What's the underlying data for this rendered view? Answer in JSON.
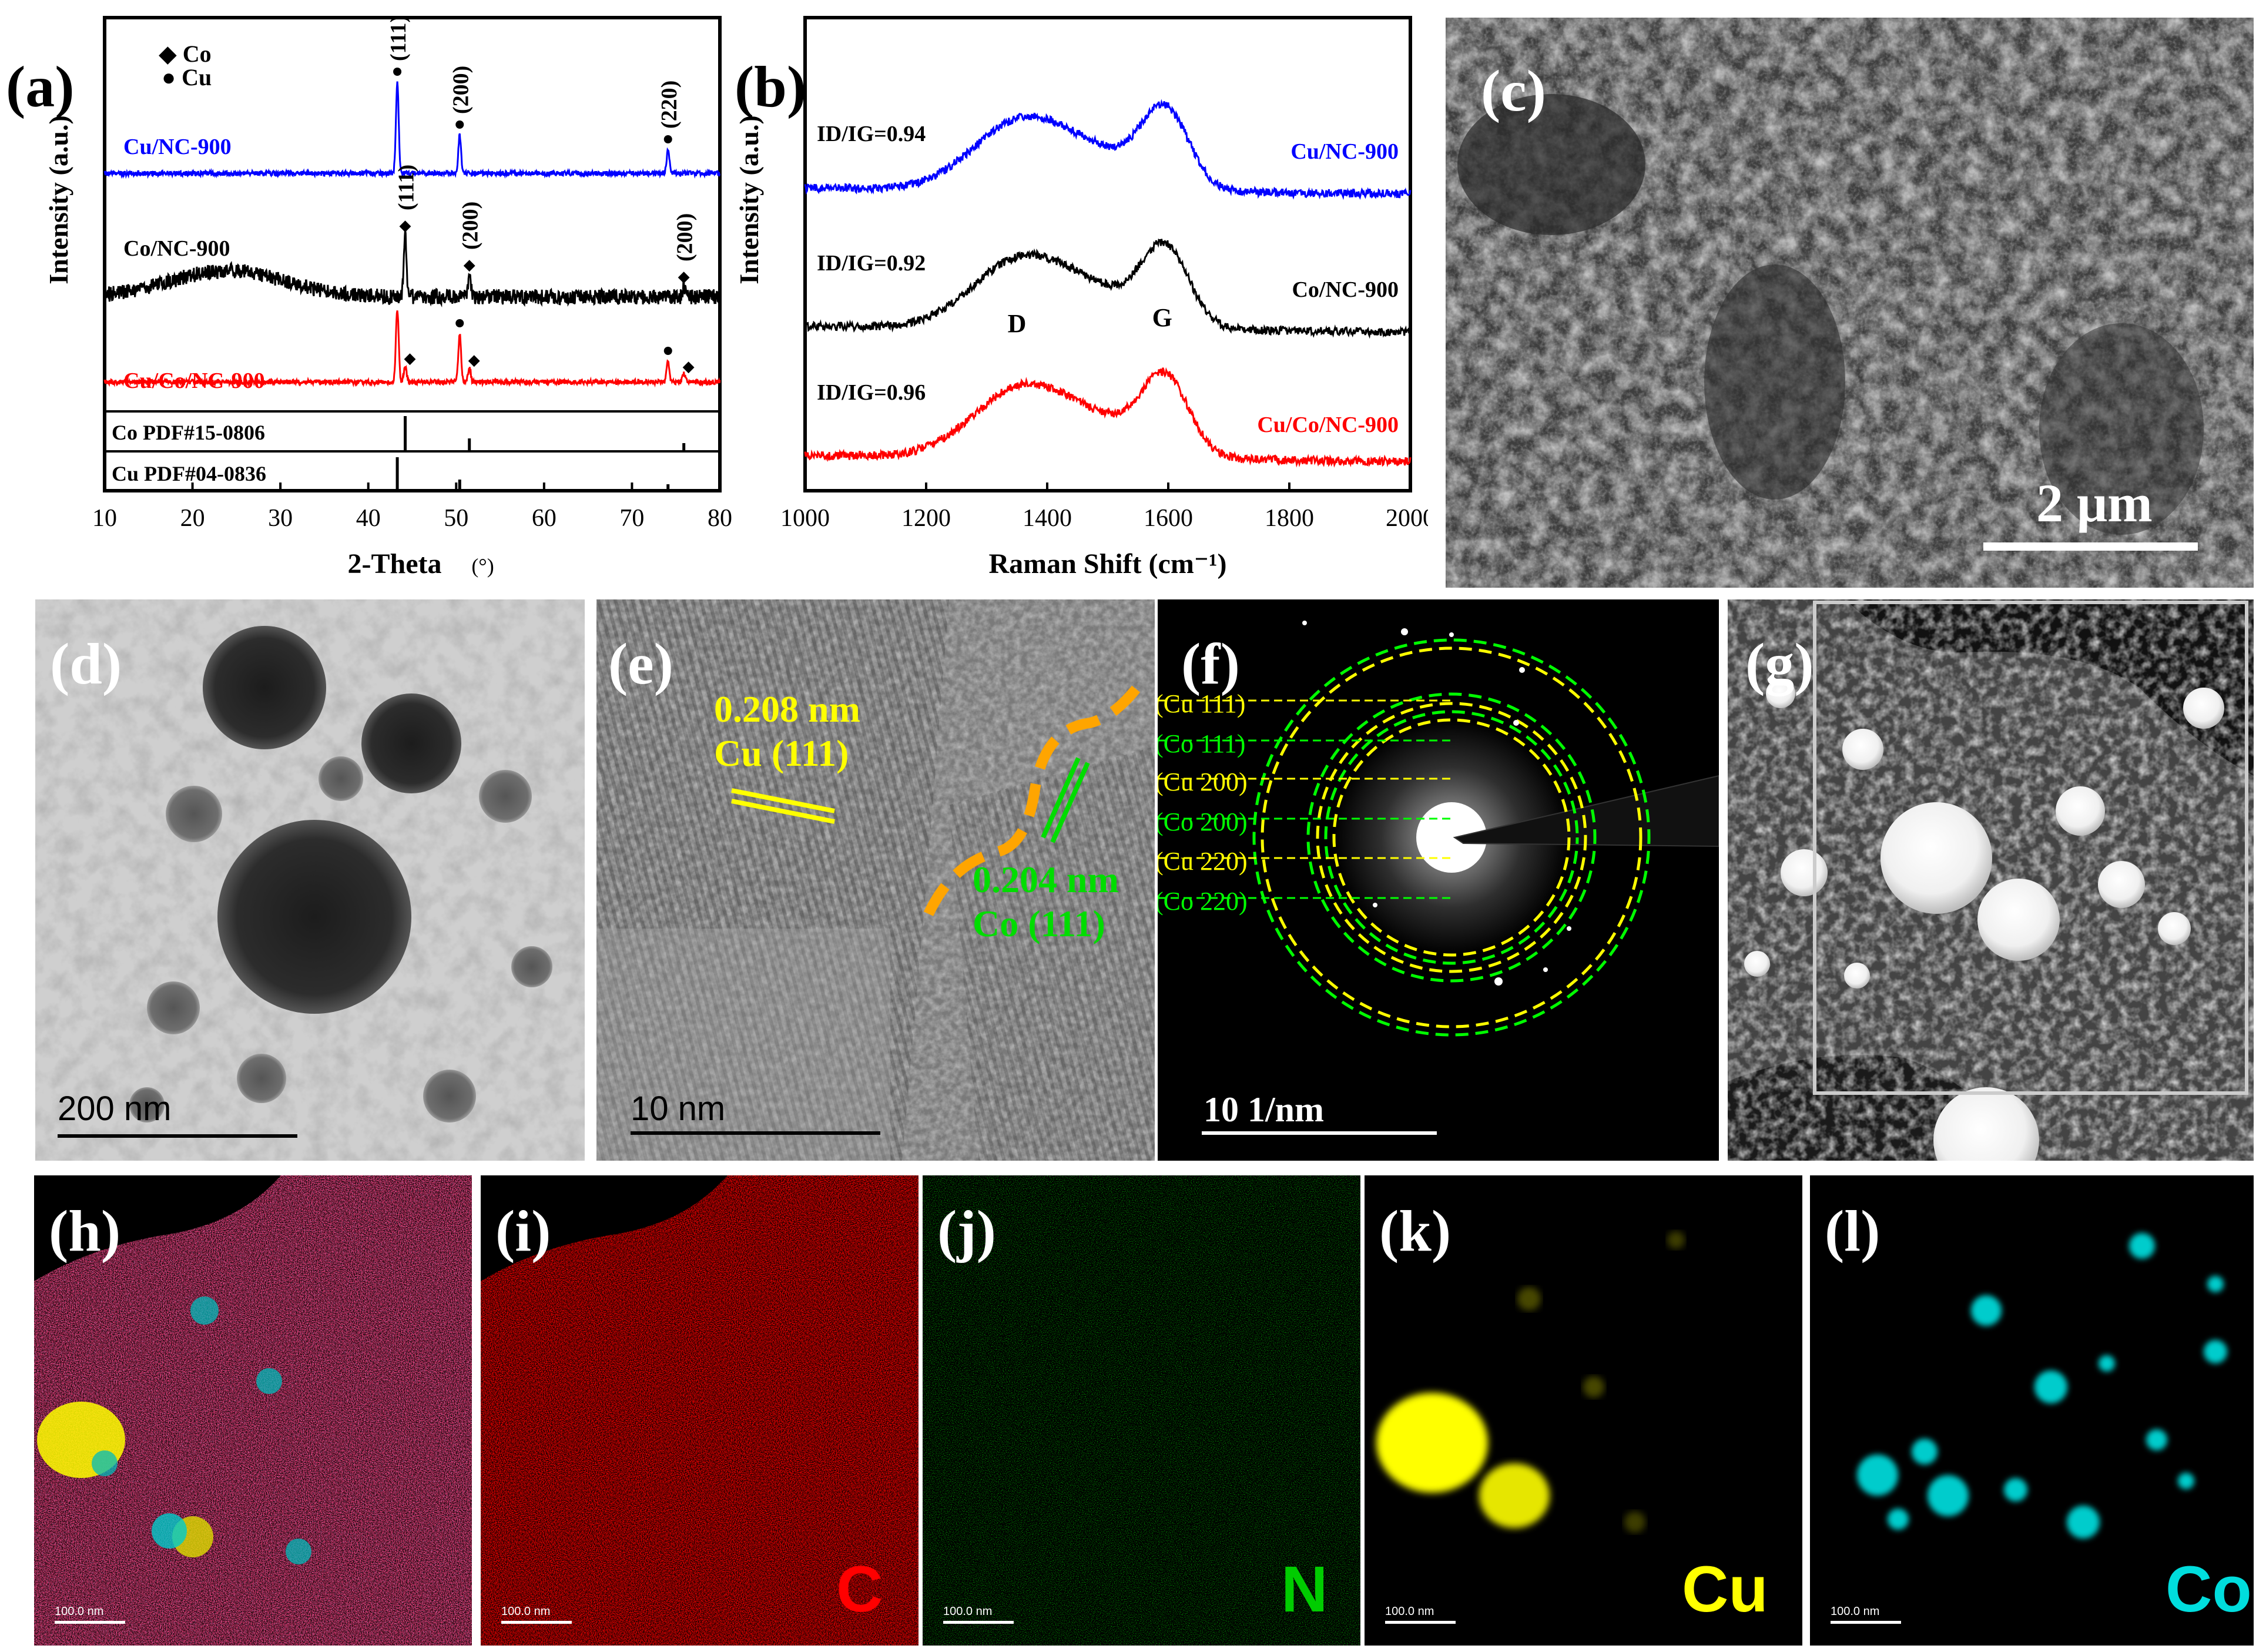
{
  "panels": {
    "a": "(a)",
    "b": "(b)",
    "c": "(c)",
    "d": "(d)",
    "e": "(e)",
    "f": "(f)",
    "g": "(g)",
    "h": "(h)",
    "i": "(i)",
    "j": "(j)",
    "k": "(k)",
    "l": "(l)"
  },
  "xrd": {
    "legend": [
      {
        "symbol": "◆",
        "label": "Co"
      },
      {
        "symbol": "●",
        "label": "Cu"
      }
    ],
    "xlabel": "2-Theta",
    "xunit": "(°)",
    "ylabel": "Intensity (a.u.)",
    "xlim": [
      10,
      80
    ],
    "xticks": [
      "10",
      "20",
      "30",
      "40",
      "50",
      "60",
      "70",
      "80"
    ],
    "samples": [
      {
        "label": "Cu/NC-900",
        "color": "#0000ff"
      },
      {
        "label": "Co/NC-900",
        "color": "#000000"
      },
      {
        "label": "Cu/Co/NC-900",
        "color": "#ff0000"
      }
    ],
    "peak_labels_cu": [
      "(111)",
      "(200)",
      "(220)"
    ],
    "peak_labels_co": [
      "(111)",
      "(200)",
      "(200)"
    ],
    "references": [
      {
        "label": "Co PDF#15-0806",
        "lines": [
          44.2,
          51.5,
          75.9
        ]
      },
      {
        "label": "Cu PDF#04-0836",
        "lines": [
          43.3,
          50.4,
          74.1
        ]
      }
    ]
  },
  "raman": {
    "xlabel": "Raman Shift (cm⁻¹)",
    "ylabel": "Intensity (a.u.)",
    "xlim": [
      1000,
      2000
    ],
    "xticks": [
      "1000",
      "1200",
      "1400",
      "1600",
      "1800",
      "2000"
    ],
    "band_d": "D",
    "band_g": "G",
    "samples": [
      {
        "label": "Cu/NC-900",
        "ratio": "ID/IG=0.94",
        "color": "#0000ff"
      },
      {
        "label": "Co/NC-900",
        "ratio": "ID/IG=0.92",
        "color": "#000000"
      },
      {
        "label": "Cu/Co/NC-900",
        "ratio": "ID/IG=0.96",
        "color": "#ff0000"
      }
    ]
  },
  "sem": {
    "scale": "2 μm"
  },
  "tem": {
    "scale": "200 nm"
  },
  "hrtem": {
    "scale": "10 nm",
    "cu_spacing": "0.208 nm",
    "cu_plane": "Cu (111)",
    "co_spacing": "0.204 nm",
    "co_plane": "Co (111)"
  },
  "saed": {
    "scale": "10 1/nm",
    "rings": [
      "(Cu 111)",
      "(Co 111)",
      "(Cu 200)",
      "(Co 200)",
      "(Cu 220)",
      "(Co 220)"
    ]
  },
  "maps": {
    "scale": "100.0 nm",
    "c": "C",
    "n": "N",
    "cu": "Cu",
    "co": "Co"
  }
}
